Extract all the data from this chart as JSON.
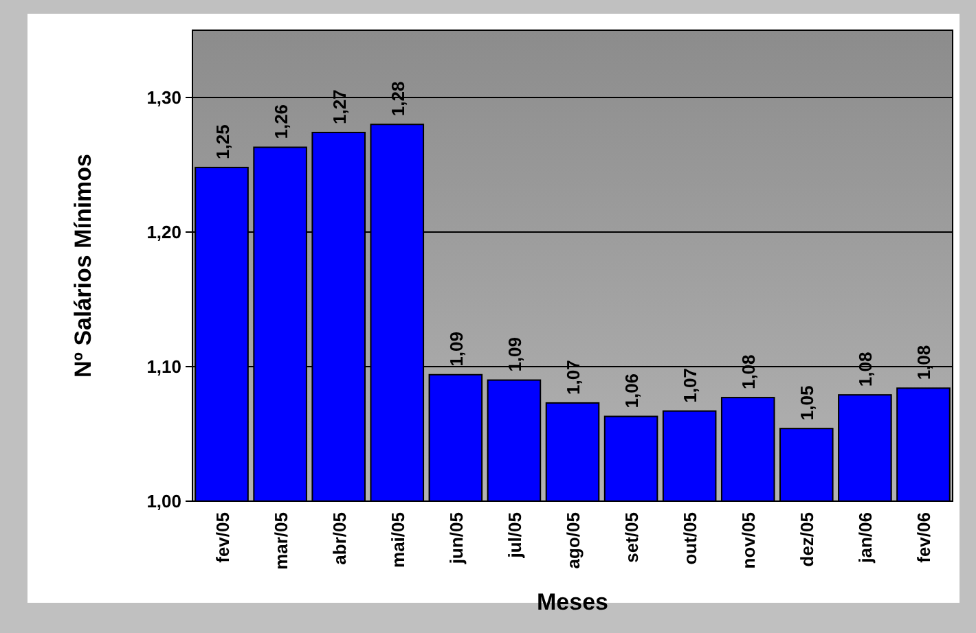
{
  "chart_data": {
    "type": "bar",
    "xlabel": "Meses",
    "ylabel": "Nº Salários Mínimos",
    "categories": [
      "fev/05",
      "mar/05",
      "abr/05",
      "mai/05",
      "jun/05",
      "jul/05",
      "ago/05",
      "set/05",
      "out/05",
      "nov/05",
      "dez/05",
      "jan/06",
      "fev/06"
    ],
    "values": [
      1.248,
      1.263,
      1.274,
      1.28,
      1.094,
      1.09,
      1.073,
      1.063,
      1.067,
      1.077,
      1.054,
      1.079,
      1.084
    ],
    "value_labels": [
      "1,25",
      "1,26",
      "1,27",
      "1,28",
      "1,09",
      "1,09",
      "1,07",
      "1,06",
      "1,07",
      "1,08",
      "1,05",
      "1,08",
      "1,08"
    ],
    "color": "#0000ff",
    "ylim": [
      1.0,
      1.35
    ],
    "yticks": [
      {
        "value": 1.0,
        "label": "1,00"
      },
      {
        "value": 1.1,
        "label": "1,10"
      },
      {
        "value": 1.2,
        "label": "1,20"
      },
      {
        "value": 1.3,
        "label": "1,30"
      }
    ],
    "grid": "y"
  }
}
